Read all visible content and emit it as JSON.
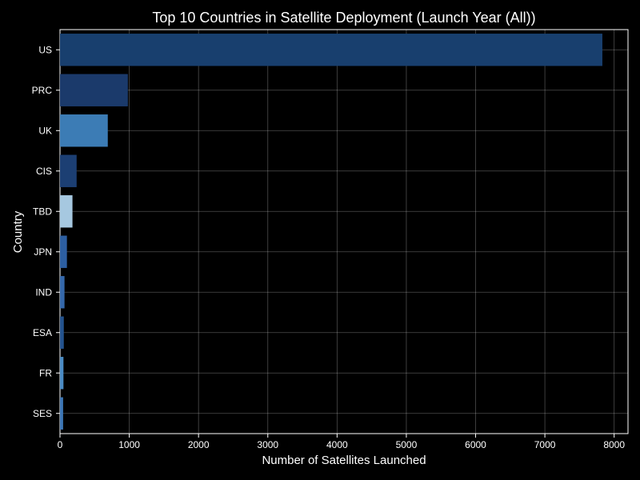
{
  "chart_data": {
    "type": "bar",
    "orientation": "horizontal",
    "title": "Top 10 Countries in Satellite Deployment (Launch Year (All))",
    "xlabel": "Number of Satellites Launched",
    "ylabel": "Country",
    "categories": [
      "US",
      "PRC",
      "UK",
      "CIS",
      "TBD",
      "JPN",
      "IND",
      "ESA",
      "FR",
      "SES"
    ],
    "values": [
      7830,
      980,
      690,
      240,
      180,
      100,
      65,
      55,
      50,
      45
    ],
    "colors": [
      "#183f6e",
      "#1b3a6b",
      "#3c7cb5",
      "#1c3f73",
      "#a6c8e0",
      "#2d5fa1",
      "#3568ab",
      "#24538e",
      "#4a8ac3",
      "#3d76b5"
    ],
    "xlim": [
      0,
      8200
    ],
    "xticks": [
      0,
      1000,
      2000,
      3000,
      4000,
      5000,
      6000,
      7000,
      8000
    ],
    "grid": true,
    "background": "#000000",
    "text_color": "#ffffff"
  }
}
